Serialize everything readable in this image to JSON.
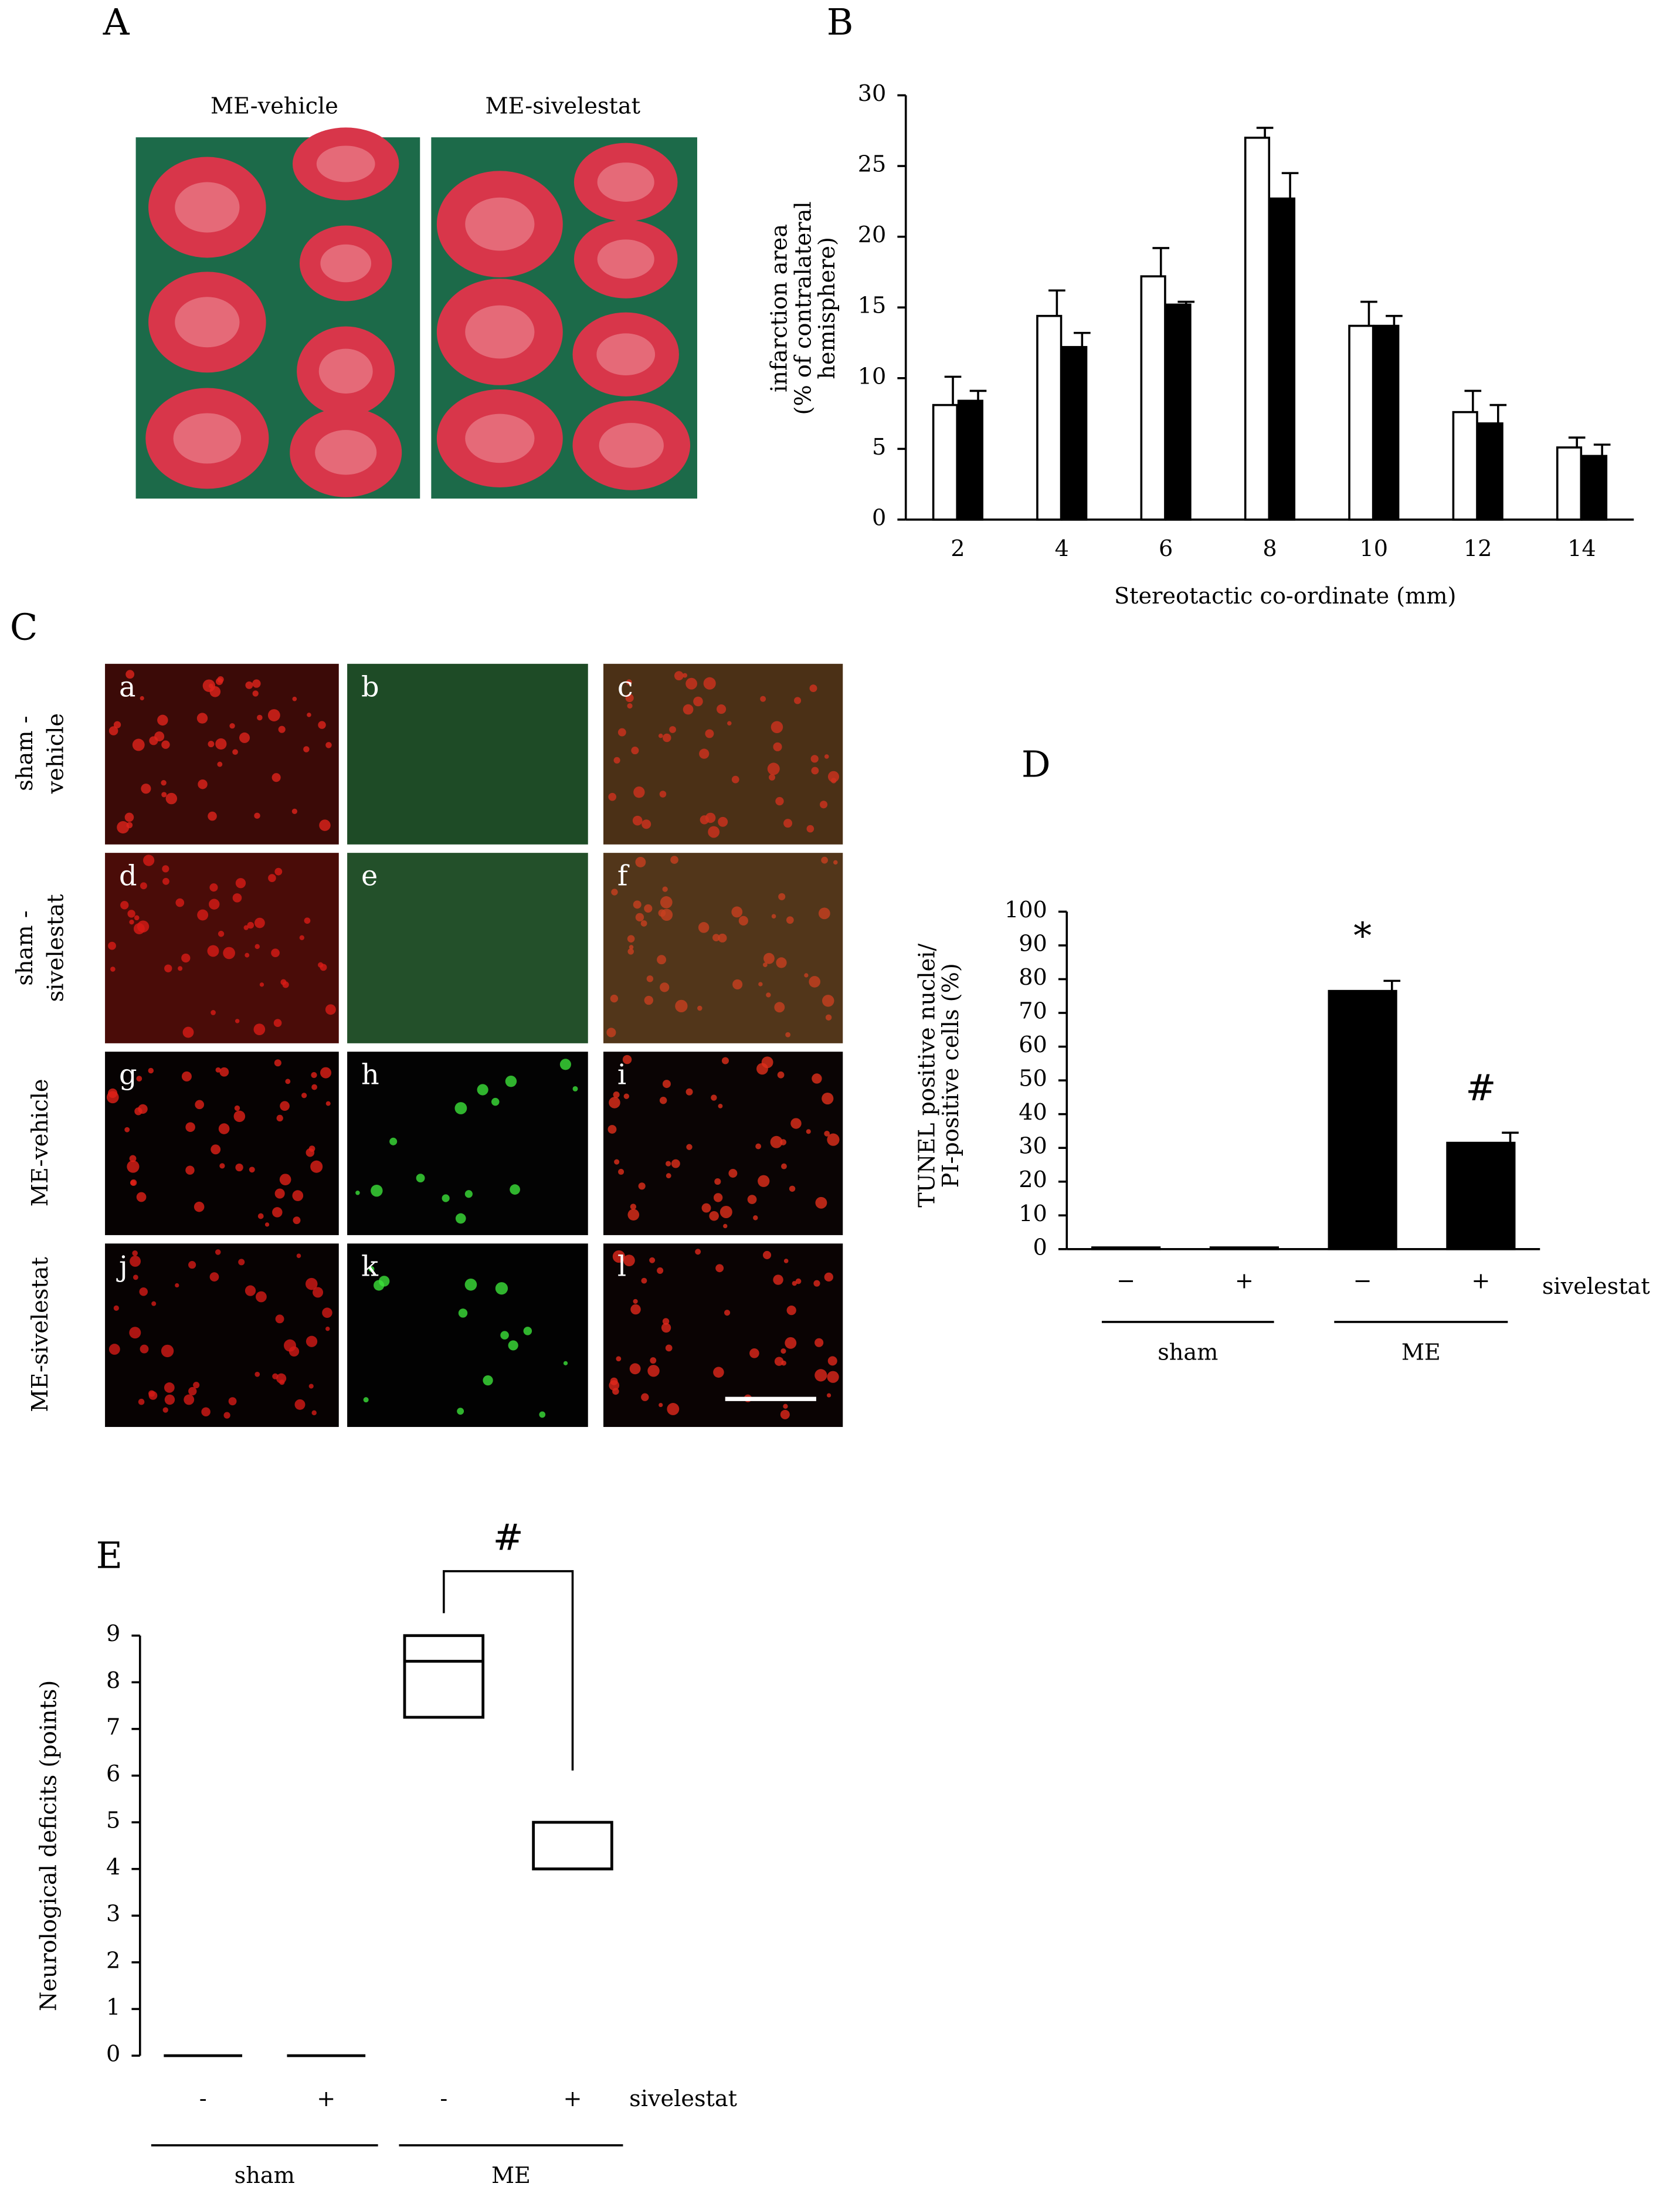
{
  "panels": {
    "A": {
      "label": "A",
      "titles": [
        "ME-vehicle",
        "ME-sivelestat"
      ]
    },
    "C": {
      "label": "C",
      "cells": [
        "a",
        "b",
        "c",
        "d",
        "e",
        "f",
        "g",
        "h",
        "i",
        "j",
        "k",
        "l"
      ],
      "rows": [
        [
          "sham -",
          "vehicle"
        ],
        [
          "sham -",
          "sivelestat"
        ],
        [
          "ME-vehicle"
        ],
        [
          "ME-sivelestat"
        ]
      ]
    }
  },
  "chart_data": [
    {
      "panel": "B",
      "type": "bar",
      "categories": [
        2,
        4,
        6,
        8,
        10,
        12,
        14
      ],
      "series": [
        {
          "color": "#ffffff",
          "values": [
            8.1,
            14.4,
            17.2,
            27.0,
            13.7,
            7.6,
            5.1
          ],
          "errors": [
            2.0,
            1.8,
            2.0,
            0.7,
            1.7,
            1.5,
            0.7
          ]
        },
        {
          "color": "#000000",
          "values": [
            8.4,
            12.2,
            15.2,
            22.7,
            13.7,
            6.8,
            4.5
          ],
          "errors": [
            0.7,
            1.0,
            0.2,
            1.8,
            0.7,
            1.3,
            0.8
          ]
        }
      ],
      "ylim": [
        0,
        30
      ],
      "yticks": [
        0,
        5,
        10,
        15,
        20,
        25,
        30
      ],
      "y_label": [
        "infarction area",
        "(% of contralateral",
        "hemisphere)"
      ],
      "x_label": "Stereotactic co-ordinate (mm)"
    },
    {
      "panel": "D",
      "type": "bar",
      "categories": [
        "−",
        "+",
        "−",
        "+"
      ],
      "series": [
        {
          "color": "#000000",
          "values": [
            0.5,
            0.5,
            76.5,
            31.5
          ],
          "errors": [
            0,
            0,
            3,
            3
          ]
        }
      ],
      "value_annotations": [
        null,
        null,
        "*",
        "#"
      ],
      "ylim": [
        0,
        100
      ],
      "yticks": [
        0,
        10,
        20,
        30,
        40,
        50,
        60,
        70,
        80,
        90,
        100
      ],
      "y_label": [
        "TUNEL positive nuclei/",
        "PI-positive cells (%)"
      ],
      "factor_label": "sivelestat",
      "groups": [
        "sham",
        "ME"
      ]
    },
    {
      "panel": "E",
      "type": "box",
      "categories": [
        "-",
        "+",
        "-",
        "+"
      ],
      "boxes": [
        {
          "q1": 0,
          "median": 0,
          "q3": 0
        },
        {
          "q1": 0,
          "median": 0,
          "q3": 0
        },
        {
          "q1": 7.25,
          "median": 8.45,
          "q3": 9
        },
        {
          "q1": 4,
          "median": 4,
          "q3": 5
        }
      ],
      "significance": "#",
      "ylim": [
        0,
        9
      ],
      "yticks": [
        0,
        1,
        2,
        3,
        4,
        5,
        6,
        7,
        8,
        9
      ],
      "y_label": [
        "Neurological deficits (points)"
      ],
      "factor_label": "sivelestat",
      "groups": [
        "sham",
        "ME"
      ]
    }
  ]
}
